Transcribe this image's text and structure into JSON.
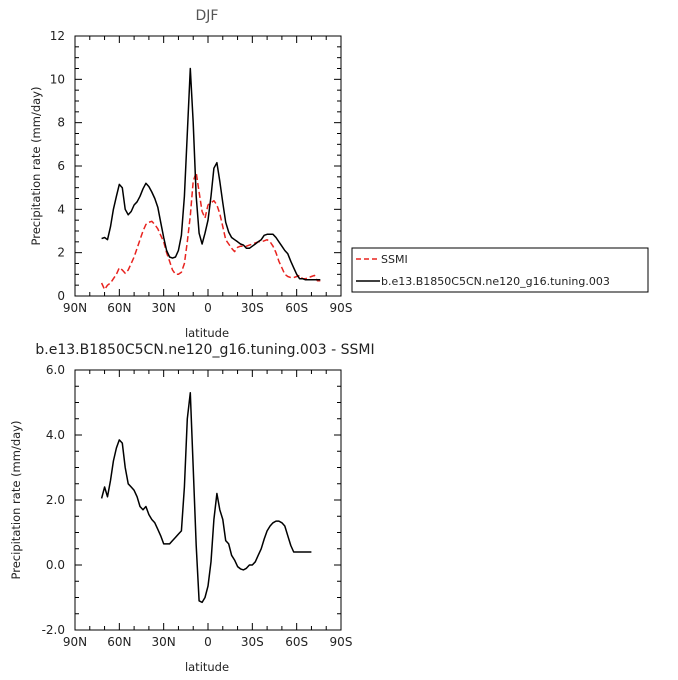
{
  "chart_data": [
    {
      "type": "line",
      "title": "DJF",
      "xlabel": "latitude",
      "ylabel": "Precipitation rate (mm/day)",
      "xlim": [
        90,
        -90
      ],
      "ylim": [
        0,
        12
      ],
      "x_tick_values": [
        90,
        60,
        30,
        0,
        -30,
        -60,
        -90
      ],
      "x_tick_labels": [
        "90N",
        "60N",
        "30N",
        "0",
        "30S",
        "60S",
        "90S"
      ],
      "y_tick_values": [
        0,
        2,
        4,
        6,
        8,
        10,
        12
      ],
      "y_tick_labels": [
        "0",
        "2",
        "4",
        "6",
        "8",
        "10",
        "12"
      ],
      "legend": "right",
      "series": [
        {
          "name": "SSMI",
          "color": "#e8231f",
          "dash": "dashed",
          "x": [
            72,
            70,
            68,
            66,
            64,
            62,
            60,
            58,
            56,
            54,
            52,
            50,
            48,
            46,
            44,
            42,
            40,
            38,
            36,
            34,
            32,
            30,
            28,
            26,
            24,
            22,
            20,
            18,
            16,
            14,
            12,
            10,
            8,
            6,
            4,
            2,
            0,
            -2,
            -4,
            -6,
            -8,
            -10,
            -12,
            -14,
            -16,
            -18,
            -20,
            -22,
            -24,
            -26,
            -28,
            -30,
            -32,
            -34,
            -36,
            -38,
            -40,
            -42,
            -44,
            -46,
            -48,
            -50,
            -52,
            -54,
            -56,
            -58,
            -60,
            -62,
            -64,
            -66,
            -68,
            -70,
            -72,
            -74,
            -76
          ],
          "y": [
            0.6,
            0.3,
            0.5,
            0.6,
            0.8,
            1.0,
            1.3,
            1.2,
            1.05,
            1.2,
            1.5,
            1.8,
            2.2,
            2.6,
            3.0,
            3.3,
            3.4,
            3.45,
            3.3,
            3.1,
            2.8,
            2.5,
            2.0,
            1.6,
            1.2,
            1.0,
            1.0,
            1.1,
            1.5,
            2.5,
            3.7,
            5.3,
            5.7,
            4.8,
            3.9,
            3.6,
            4.2,
            4.3,
            4.4,
            4.2,
            3.8,
            3.2,
            2.6,
            2.4,
            2.2,
            2.05,
            2.25,
            2.3,
            2.3,
            2.3,
            2.35,
            2.4,
            2.45,
            2.5,
            2.5,
            2.55,
            2.6,
            2.5,
            2.3,
            2.0,
            1.6,
            1.3,
            1.0,
            0.9,
            0.85,
            0.85,
            0.9,
            0.95,
            0.8,
            0.8,
            0.85,
            0.9,
            0.95,
            0.7,
            0.7
          ]
        },
        {
          "name": "b.e13.B1850C5CN.ne120_g16.tuning.003",
          "color": "#000000",
          "dash": "solid",
          "x": [
            72,
            70,
            68,
            66,
            64,
            62,
            60,
            58,
            56,
            54,
            52,
            50,
            48,
            46,
            44,
            42,
            40,
            38,
            36,
            34,
            32,
            30,
            28,
            26,
            24,
            22,
            20,
            18,
            16,
            14,
            12,
            10,
            8,
            6,
            4,
            2,
            0,
            -2,
            -4,
            -6,
            -8,
            -10,
            -12,
            -14,
            -16,
            -18,
            -20,
            -22,
            -24,
            -26,
            -28,
            -30,
            -32,
            -34,
            -36,
            -38,
            -40,
            -42,
            -44,
            -46,
            -48,
            -50,
            -52,
            -54,
            -56,
            -58,
            -60,
            -62,
            -64,
            -66,
            -68,
            -70,
            -72,
            -74,
            -76
          ],
          "y": [
            2.65,
            2.7,
            2.6,
            3.2,
            4.0,
            4.6,
            5.15,
            5.0,
            4.0,
            3.75,
            3.9,
            4.2,
            4.35,
            4.6,
            4.95,
            5.2,
            5.05,
            4.8,
            4.5,
            4.1,
            3.4,
            2.7,
            2.1,
            1.8,
            1.75,
            1.8,
            2.1,
            2.8,
            4.6,
            7.5,
            10.5,
            8.0,
            4.6,
            2.9,
            2.4,
            2.9,
            3.5,
            4.6,
            5.9,
            6.15,
            5.3,
            4.3,
            3.4,
            2.95,
            2.7,
            2.6,
            2.5,
            2.4,
            2.35,
            2.2,
            2.2,
            2.3,
            2.4,
            2.5,
            2.6,
            2.8,
            2.85,
            2.85,
            2.85,
            2.7,
            2.5,
            2.3,
            2.1,
            1.95,
            1.6,
            1.3,
            1.0,
            0.8,
            0.8,
            0.75,
            0.75,
            0.75,
            0.75,
            0.75,
            0.75
          ]
        }
      ]
    },
    {
      "type": "line",
      "title": "b.e13.B1850C5CN.ne120_g16.tuning.003 - SSMI",
      "xlabel": "latitude",
      "ylabel": "Precipitation rate (mm/day)",
      "xlim": [
        90,
        -90
      ],
      "ylim": [
        -2,
        6
      ],
      "x_tick_values": [
        90,
        60,
        30,
        0,
        -30,
        -60,
        -90
      ],
      "x_tick_labels": [
        "90N",
        "60N",
        "30N",
        "0",
        "30S",
        "60S",
        "90S"
      ],
      "y_tick_values": [
        -2,
        0,
        2,
        4,
        6
      ],
      "y_tick_labels": [
        "-2.0",
        "0.0",
        "2.0",
        "4.0",
        "6.0"
      ],
      "series": [
        {
          "color": "#000000",
          "dash": "solid",
          "x": [
            72,
            70,
            68,
            66,
            64,
            62,
            60,
            58,
            56,
            54,
            52,
            50,
            48,
            46,
            44,
            42,
            40,
            38,
            36,
            34,
            32,
            30,
            28,
            26,
            24,
            22,
            20,
            18,
            16,
            14,
            12,
            10,
            8,
            6,
            4,
            2,
            0,
            -2,
            -4,
            -6,
            -8,
            -10,
            -12,
            -14,
            -16,
            -18,
            -20,
            -22,
            -24,
            -26,
            -28,
            -30,
            -32,
            -34,
            -36,
            -38,
            -40,
            -42,
            -44,
            -46,
            -48,
            -50,
            -52,
            -54,
            -56,
            -58,
            -60,
            -62,
            -64,
            -66,
            -68,
            -70
          ],
          "y": [
            2.05,
            2.4,
            2.1,
            2.6,
            3.2,
            3.6,
            3.85,
            3.75,
            3.0,
            2.5,
            2.4,
            2.3,
            2.1,
            1.8,
            1.7,
            1.8,
            1.55,
            1.4,
            1.3,
            1.1,
            0.9,
            0.65,
            0.65,
            0.65,
            0.75,
            0.85,
            0.95,
            1.05,
            2.4,
            4.5,
            5.3,
            3.0,
            0.6,
            -1.1,
            -1.15,
            -1.0,
            -0.65,
            0.1,
            1.4,
            2.2,
            1.7,
            1.4,
            0.75,
            0.65,
            0.3,
            0.15,
            -0.05,
            -0.12,
            -0.15,
            -0.1,
            0.0,
            0.0,
            0.1,
            0.3,
            0.5,
            0.8,
            1.05,
            1.2,
            1.3,
            1.35,
            1.35,
            1.3,
            1.2,
            0.9,
            0.6,
            0.4,
            0.4,
            0.4,
            0.4,
            0.4,
            0.4,
            0.4
          ]
        }
      ]
    }
  ]
}
